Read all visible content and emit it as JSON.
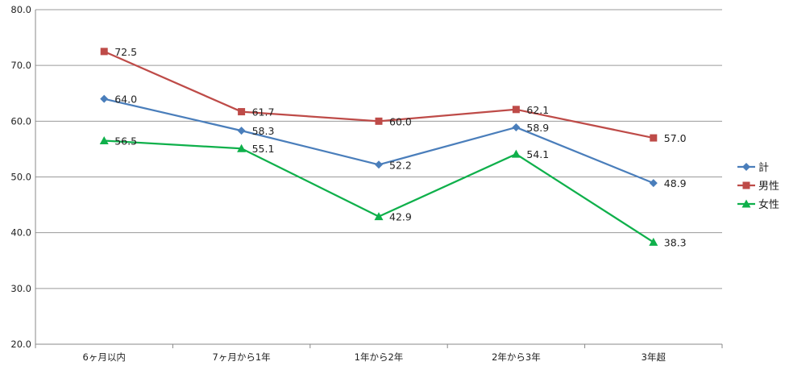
{
  "chart_data": {
    "type": "line",
    "categories": [
      "6ヶ月以内",
      "7ヶ月から1年",
      "1年から2年",
      "2年から3年",
      "3年超"
    ],
    "series": [
      {
        "name": "計",
        "values": [
          64.0,
          58.3,
          52.2,
          58.9,
          48.9
        ],
        "color": "#4a7ebb",
        "marker": "diamond"
      },
      {
        "name": "男性",
        "values": [
          72.5,
          61.7,
          60.0,
          62.1,
          57.0
        ],
        "color": "#be4b48",
        "marker": "square"
      },
      {
        "name": "女性",
        "values": [
          56.5,
          55.1,
          42.9,
          54.1,
          38.3
        ],
        "color": "#0fb04b",
        "marker": "triangle"
      }
    ],
    "y_ticks": [
      "20.0",
      "30.0",
      "40.0",
      "50.0",
      "60.0",
      "70.0",
      "80.0"
    ],
    "ylim": [
      20,
      80
    ],
    "grid": true,
    "legend_position": "right",
    "title": "",
    "xlabel": "",
    "ylabel": ""
  }
}
